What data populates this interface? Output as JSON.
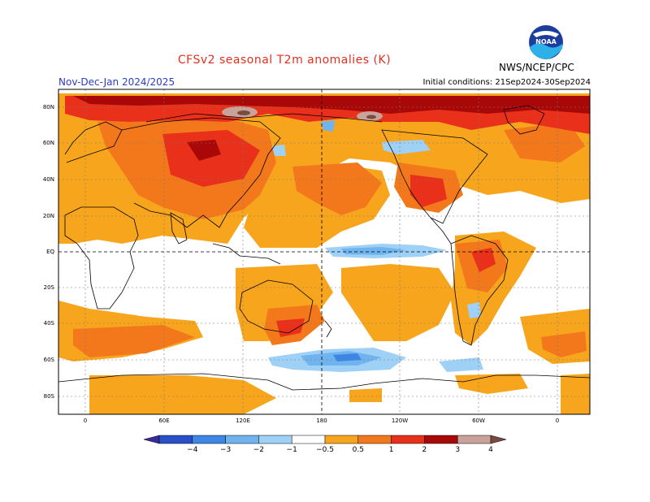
{
  "title": "CFSv2 seasonal T2m anomalies (K)",
  "period": "Nov-Dec-Jan 2024/2025",
  "initial_conditions": "Initial conditions: 21Sep2024-30Sep2024",
  "agency": "NWS/NCEP/CPC",
  "logo_text": "NOAA",
  "lat_labels": [
    "80N",
    "60N",
    "40N",
    "20N",
    "EQ",
    "20S",
    "40S",
    "60S",
    "80S"
  ],
  "lon_labels": [
    "0",
    "60E",
    "120E",
    "180",
    "120W",
    "60W",
    "0"
  ],
  "colorbar": {
    "ticks": [
      "−4",
      "−3",
      "−2",
      "−1",
      "−0.5",
      "0.5",
      "1",
      "2",
      "3",
      "4"
    ],
    "colors": [
      "#3a2a9e",
      "#2850c8",
      "#3e86e6",
      "#6fb4ee",
      "#9fd0f5",
      "#ffffff",
      "#f8a51e",
      "#f3781c",
      "#e8301a",
      "#a80808",
      "#c9a29a",
      "#7a4a3e"
    ]
  },
  "colors": {
    "warm1": "#f8a51e",
    "warm2": "#f3781c",
    "warm3": "#e8301a",
    "warm4": "#a80808",
    "warm5": "#c9a29a",
    "cool1": "#9fd0f5",
    "cool2": "#6fb4ee",
    "cool3": "#3e86e6"
  }
}
